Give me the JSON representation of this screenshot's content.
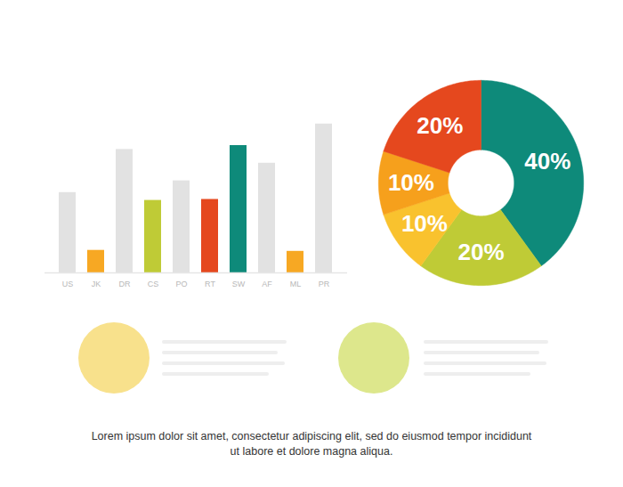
{
  "chart_data": [
    {
      "type": "bar",
      "categories": [
        "US",
        "JK",
        "DR",
        "CS",
        "PO",
        "RT",
        "SW",
        "AF",
        "ML",
        "PR"
      ],
      "values": [
        82,
        23,
        126,
        74,
        94,
        75,
        130,
        112,
        22,
        152
      ],
      "colors": [
        "#e2e2e2",
        "#f7a823",
        "#e2e2e2",
        "#bfcb36",
        "#e2e2e2",
        "#e5481e",
        "#0e8a7a",
        "#e2e2e2",
        "#f7a823",
        "#e2e2e2"
      ],
      "ylim": [
        0,
        160
      ],
      "tick_labels": "x"
    },
    {
      "type": "pie",
      "values": [
        40,
        20,
        10,
        10,
        20
      ],
      "value_labels": [
        "40%",
        "20%",
        "10%",
        "10%",
        "20%"
      ],
      "colors": [
        "#0e8a7a",
        "#bfcb36",
        "#f9c22e",
        "#f6a01c",
        "#e5481e"
      ],
      "data_labels": true
    },
    {
      "type": "text",
      "caption": "Lorem ipsum dolor sit amet, consectetur adipiscing elit, sed do eiusmod tempor incididunt ut labore et dolore magna aliqua."
    }
  ]
}
